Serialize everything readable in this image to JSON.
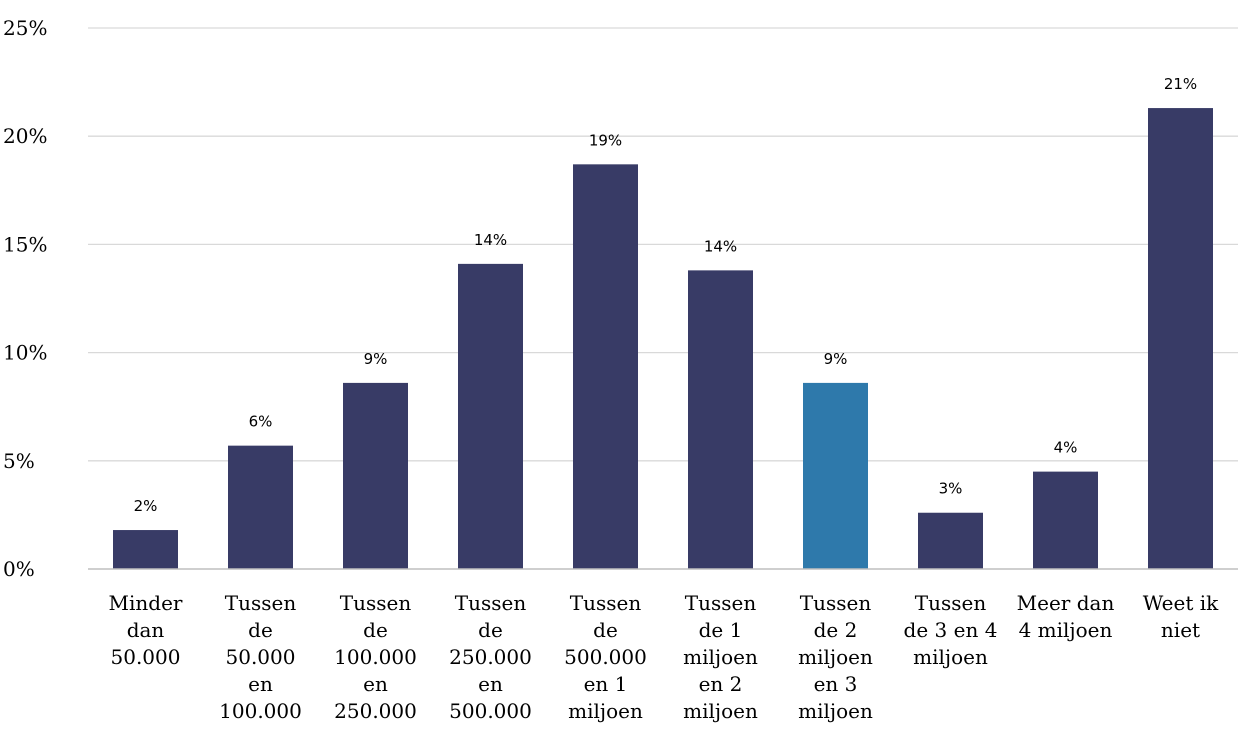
{
  "chart_data": {
    "type": "bar",
    "categories": [
      [
        "Minder",
        "dan",
        "50.000"
      ],
      [
        "Tussen",
        "de",
        "50.000",
        "en",
        "100.000"
      ],
      [
        "Tussen",
        "de",
        "100.000",
        "en",
        "250.000"
      ],
      [
        "Tussen",
        "de",
        "250.000",
        "en",
        "500.000"
      ],
      [
        "Tussen",
        "de",
        "500.000",
        "en 1",
        "miljoen"
      ],
      [
        "Tussen",
        "de 1",
        "miljoen",
        "en 2",
        "miljoen"
      ],
      [
        "Tussen",
        "de 2",
        "miljoen",
        "en 3",
        "miljoen"
      ],
      [
        "Tussen",
        "de 3 en 4",
        "miljoen"
      ],
      [
        "Meer dan",
        "4 miljoen"
      ],
      [
        "Weet ik",
        "niet"
      ]
    ],
    "values": [
      1.8,
      5.7,
      8.6,
      14.1,
      18.7,
      13.8,
      8.6,
      2.6,
      4.5,
      21.3
    ],
    "data_labels": [
      "2%",
      "6%",
      "9%",
      "14%",
      "19%",
      "14%",
      "9%",
      "3%",
      "4%",
      "21%"
    ],
    "ylim": [
      0,
      25
    ],
    "yticks": [
      "0%",
      "5%",
      "10%",
      "15%",
      "20%",
      "25%"
    ],
    "grid": true,
    "colors": {
      "bar": "#383b66",
      "highlight": "#2e79ab",
      "grid": "#d9d9d9"
    },
    "highlight_index": 6
  }
}
